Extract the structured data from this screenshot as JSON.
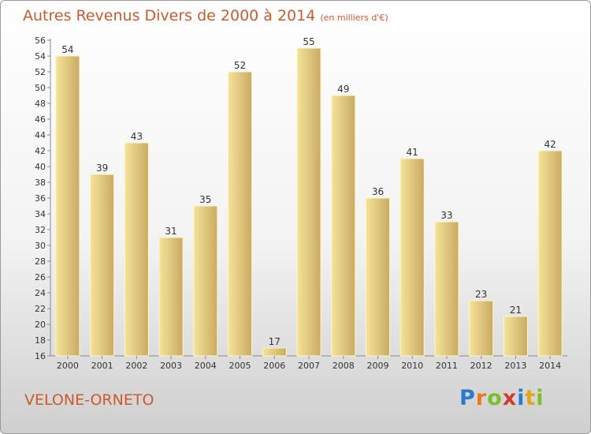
{
  "title": "Autres Revenus Divers de 2000 à 2014",
  "unit_note": "(en milliers d'€)",
  "place": "VELONE-ORNETO",
  "logo_text": "Proxiti",
  "colors": {
    "bar_light": "#f6e29a",
    "bar_dark": "#c9ab62",
    "title": "#cc5a2e"
  },
  "chart_data": {
    "type": "bar",
    "title": "Autres Revenus Divers de 2000 à 2014",
    "categories": [
      "2000",
      "2001",
      "2002",
      "2003",
      "2004",
      "2005",
      "2006",
      "2007",
      "2008",
      "2009",
      "2010",
      "2011",
      "2012",
      "2013",
      "2014"
    ],
    "values": [
      54,
      39,
      43,
      31,
      35,
      52,
      17,
      55,
      49,
      36,
      41,
      33,
      23,
      21,
      42
    ],
    "ylim": [
      16,
      56
    ],
    "yticks": [
      16,
      18,
      20,
      22,
      24,
      26,
      28,
      30,
      32,
      34,
      36,
      38,
      40,
      42,
      44,
      46,
      48,
      50,
      52,
      54,
      56
    ],
    "grid": false,
    "data_labels": true
  }
}
